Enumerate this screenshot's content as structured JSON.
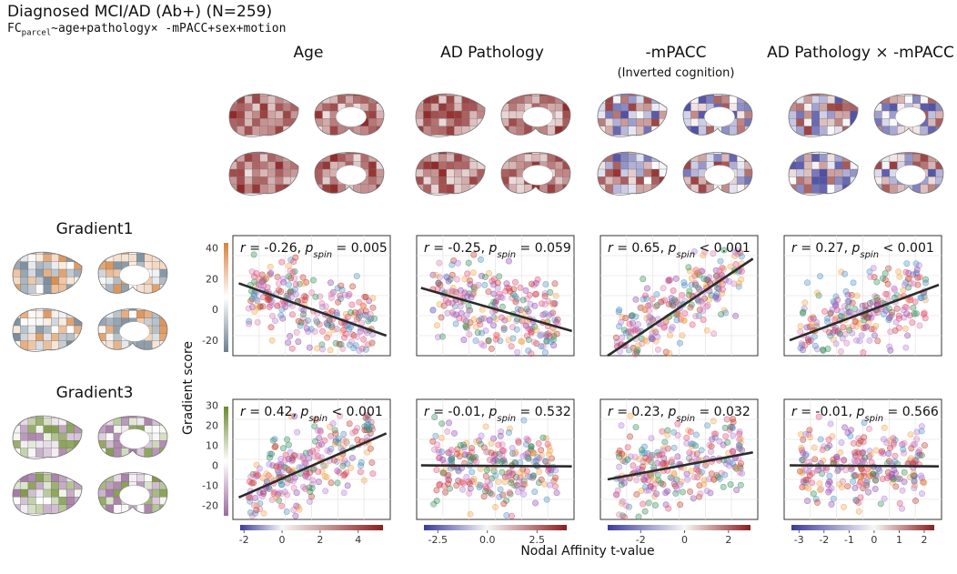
{
  "figure": {
    "title": "Diagnosed MCI/AD (Ab+) (N=259)",
    "formula_prefix": "FC",
    "formula_subscript": "parcel",
    "formula_rest": "~age+pathology× -mPACC+sex+motion",
    "y_axis_label": "Gradient score",
    "x_axis_label": "Nodal Affinity t-value"
  },
  "columns": [
    {
      "title": "Age",
      "subtitle": ""
    },
    {
      "title": "AD Pathology",
      "subtitle": ""
    },
    {
      "title": "-mPACC",
      "subtitle": "(Inverted cognition)"
    },
    {
      "title": "AD Pathology × -mPACC",
      "subtitle": ""
    }
  ],
  "rows": [
    {
      "title": "Gradient1",
      "yticks": [
        "40",
        "20",
        "0",
        "-20"
      ]
    },
    {
      "title": "Gradient3",
      "yticks": [
        "30",
        "20",
        "10",
        "0",
        "-10",
        "-20"
      ]
    }
  ],
  "colorbars": [
    {
      "ticks": [
        "-2",
        "0",
        "2",
        "4"
      ]
    },
    {
      "ticks": [
        "-2.5",
        "0.0",
        "2.5"
      ]
    },
    {
      "ticks": [
        "-2",
        "0",
        "2"
      ]
    },
    {
      "ticks": [
        "-3",
        "-2",
        "-1",
        "0",
        "1",
        "2"
      ]
    }
  ],
  "colors": {
    "red_high": "#8b1e1e",
    "blue_low": "#3b3b9c",
    "grad1_high": "#d9823b",
    "grad1_low": "#6b7f90",
    "grad3_high": "#6b8a2a",
    "grad3_low": "#9b6b9b"
  },
  "chart_data": [
    {
      "type": "scatter",
      "row": "Gradient1",
      "column": "Age",
      "r": "-0.26",
      "p_spin": "0.005",
      "xlim": [
        -2.5,
        5.5
      ],
      "ylim": [
        -30,
        48
      ],
      "fit": {
        "x": [
          -2.2,
          5.3
        ],
        "y": [
          17,
          -17
        ]
      }
    },
    {
      "type": "scatter",
      "row": "Gradient1",
      "column": "AD Pathology",
      "r": "-0.25",
      "p_spin": "0.059",
      "xlim": [
        -3.2,
        4.0
      ],
      "ylim": [
        -30,
        48
      ],
      "fit": {
        "x": [
          -3.0,
          3.9
        ],
        "y": [
          14,
          -14
        ]
      }
    },
    {
      "type": "scatter",
      "row": "Gradient1",
      "column": "-mPACC",
      "r": "0.65",
      "p_spin": "< 0.001",
      "xlim": [
        -3.5,
        3.0
      ],
      "ylim": [
        -30,
        48
      ],
      "fit": {
        "x": [
          -3.2,
          2.8
        ],
        "y": [
          -30,
          33
        ]
      }
    },
    {
      "type": "scatter",
      "row": "Gradient1",
      "column": "AD Pathology × -mPACC",
      "r": "0.27",
      "p_spin": "< 0.001",
      "xlim": [
        -3.3,
        2.4
      ],
      "ylim": [
        -30,
        48
      ],
      "fit": {
        "x": [
          -3.1,
          2.3
        ],
        "y": [
          -20,
          16
        ]
      }
    },
    {
      "type": "scatter",
      "row": "Gradient3",
      "column": "Age",
      "r": "0.42",
      "p_spin": "< 0.001",
      "xlim": [
        -2.5,
        5.5
      ],
      "ylim": [
        -27,
        33
      ],
      "fit": {
        "x": [
          -2.2,
          5.3
        ],
        "y": [
          -16,
          16
        ]
      }
    },
    {
      "type": "scatter",
      "row": "Gradient3",
      "column": "AD Pathology",
      "r": "-0.01",
      "p_spin": "0.532",
      "xlim": [
        -3.2,
        4.0
      ],
      "ylim": [
        -27,
        33
      ],
      "fit": {
        "x": [
          -3.0,
          3.9
        ],
        "y": [
          0,
          -0.5
        ]
      }
    },
    {
      "type": "scatter",
      "row": "Gradient3",
      "column": "-mPACC",
      "r": "0.23",
      "p_spin": "0.032",
      "xlim": [
        -3.5,
        3.0
      ],
      "ylim": [
        -27,
        33
      ],
      "fit": {
        "x": [
          -3.2,
          2.8
        ],
        "y": [
          -7,
          6.5
        ]
      }
    },
    {
      "type": "scatter",
      "row": "Gradient3",
      "column": "AD Pathology × -mPACC",
      "r": "-0.01",
      "p_spin": "0.566",
      "xlim": [
        -3.3,
        2.4
      ],
      "ylim": [
        -27,
        33
      ],
      "fit": {
        "x": [
          -3.1,
          2.3
        ],
        "y": [
          0,
          -0.5
        ]
      }
    }
  ]
}
